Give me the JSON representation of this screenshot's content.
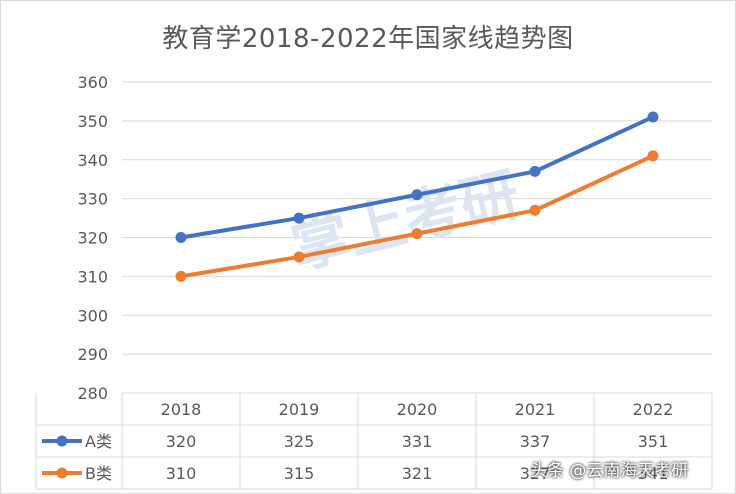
{
  "chart_data": {
    "type": "line",
    "title": "教育学2018-2022年国家线趋势图",
    "categories": [
      "2018",
      "2019",
      "2020",
      "2021",
      "2022"
    ],
    "series": [
      {
        "name": "A类",
        "values": [
          320,
          325,
          331,
          337,
          351
        ],
        "color": "#4472C4"
      },
      {
        "name": "B类",
        "values": [
          310,
          315,
          321,
          327,
          341
        ],
        "color": "#ED7D31"
      }
    ],
    "ylim": [
      280,
      360
    ],
    "yticks": [
      280,
      290,
      300,
      310,
      320,
      330,
      340,
      350,
      360
    ],
    "grid": true,
    "legend": "data-table"
  },
  "watermark": "掌上考研",
  "footer_watermark": "头条 @云南海天考研",
  "colors": {
    "grid": "#d9d9d9",
    "text": "#595959",
    "background": "#ffffff"
  }
}
